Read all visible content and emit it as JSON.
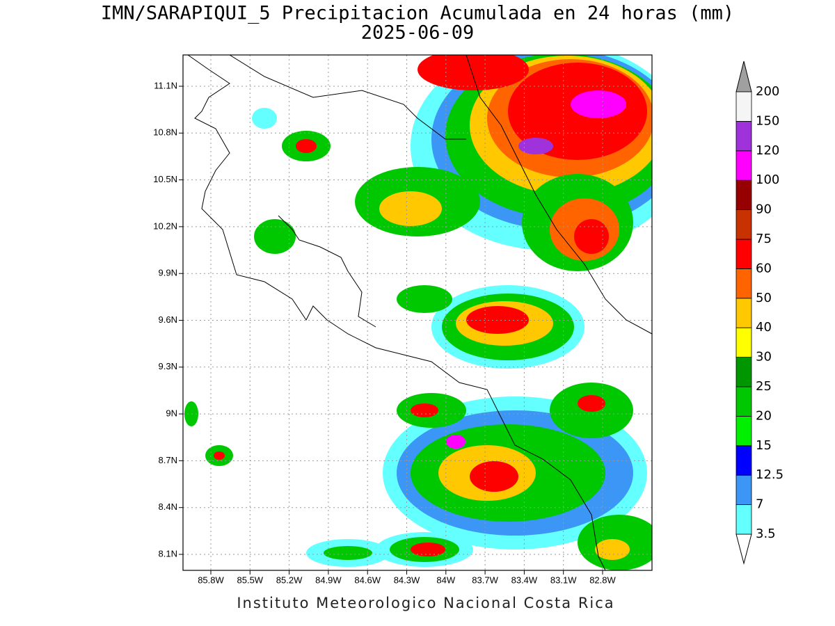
{
  "header": {
    "title": "IMN/SARAPIQUI_5 Precipitacion Acumulada en 24 horas (mm)",
    "date": "2025-06-09"
  },
  "map": {
    "lat_labels": [
      "11.1N",
      "10.8N",
      "10.5N",
      "10.2N",
      "9.9N",
      "9.6N",
      "9.3N",
      "9N",
      "8.7N",
      "8.4N",
      "8.1N"
    ],
    "lon_labels": [
      "85.8W",
      "85.5W",
      "85.2W",
      "84.9W",
      "84.6W",
      "84.3W",
      "84W",
      "83.7W",
      "83.4W",
      "83.1W",
      "82.8W"
    ]
  },
  "colorbar": {
    "levels": [
      3.5,
      7,
      12.5,
      15,
      20,
      25,
      30,
      40,
      50,
      60,
      75,
      90,
      100,
      120,
      150,
      200
    ],
    "colors": [
      "#64ffff",
      "#3c96f5",
      "#0000ff",
      "#00f000",
      "#00c800",
      "#009600",
      "#ffff00",
      "#ffc800",
      "#ff6400",
      "#ff0000",
      "#c83200",
      "#960000",
      "#ff00ff",
      "#a032dc",
      "#f5f5f5"
    ],
    "under_color": "#ffffff",
    "over_color": "#a0a0a0"
  },
  "footer": "Instituto Meteorologico Nacional Costa Rica"
}
